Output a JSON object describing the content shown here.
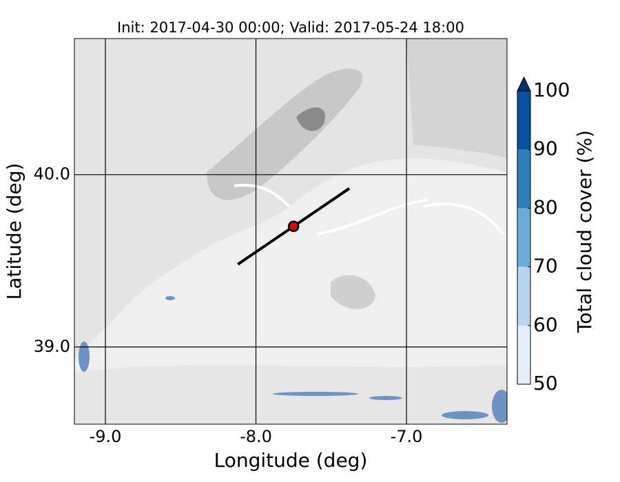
{
  "map": {
    "title": "Init: 2017-04-30 00:00; Valid: 2017-05-24 18:00",
    "xlabel": "Longitude (deg)",
    "ylabel": "Latitude (deg)",
    "xlim": [
      -9.206,
      -6.332
    ],
    "ylim": [
      38.552,
      40.79
    ],
    "xticks": [
      {
        "value": -9,
        "label": "-9.0"
      },
      {
        "value": -8,
        "label": "-8.0"
      },
      {
        "value": -7,
        "label": "-7.0"
      }
    ],
    "yticks": [
      {
        "value": 39,
        "label": "39.0"
      },
      {
        "value": 40,
        "label": "40.0"
      }
    ],
    "transect": {
      "lon": [
        -8.12,
        -7.38
      ],
      "lat": [
        39.48,
        39.92
      ],
      "color": "#000000"
    },
    "site": {
      "lon": -7.75,
      "lat": 39.7,
      "color": "#e00000"
    },
    "colorbar": {
      "label": "Total cloud cover (%)",
      "levels": [
        50,
        60,
        70,
        80,
        90,
        100
      ],
      "colors": [
        "#e3eef8",
        "#b7d4ea",
        "#6aaed6",
        "#2e7ebc",
        "#08519c"
      ],
      "extend_color": "#08306b"
    }
  }
}
